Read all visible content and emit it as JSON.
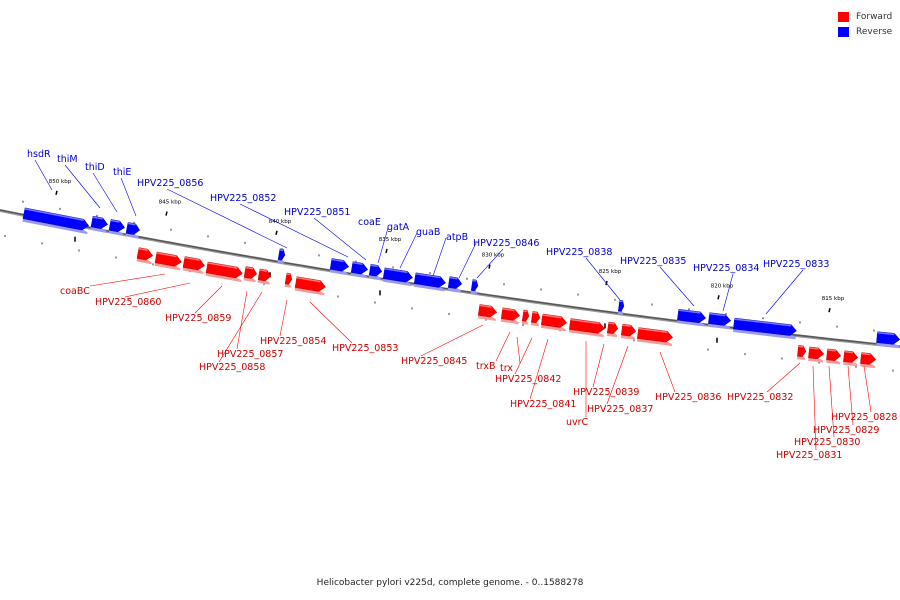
{
  "legend": {
    "forward_label": "Forward",
    "reverse_label": "Reverse",
    "forward_color": "#ff0000",
    "reverse_color": "#0000ff"
  },
  "caption": "Helicobacter pylori v225d, complete genome. - 0..1588278",
  "scale_labels": [
    "850 kbp",
    "845 kbp",
    "840 kbp",
    "835 kbp",
    "830 kbp",
    "825 kbp",
    "820 kbp",
    "815 kbp"
  ],
  "reverse_genes": [
    "hsdR",
    "thiM",
    "thiD",
    "thiE",
    "HPV225_0856",
    "HPV225_0852",
    "HPV225_0851",
    "coaE",
    "gatA",
    "guaB",
    "atpB",
    "HPV225_0846",
    "HPV225_0838",
    "HPV225_0835",
    "HPV225_0834",
    "HPV225_0833"
  ],
  "forward_genes": [
    "coaBC",
    "HPV225_0860",
    "HPV225_0859",
    "HPV225_0854",
    "HPV225_0853",
    "HPV225_0857",
    "HPV225_0858",
    "HPV225_0845",
    "trxB",
    "trx",
    "HPV225_0842",
    "HPV225_0841",
    "uvrC",
    "HPV225_0839",
    "HPV225_0837",
    "HPV225_0836",
    "HPV225_0832",
    "HPV225_0828",
    "HPV225_0829",
    "HPV225_0830",
    "HPV225_0831"
  ]
}
